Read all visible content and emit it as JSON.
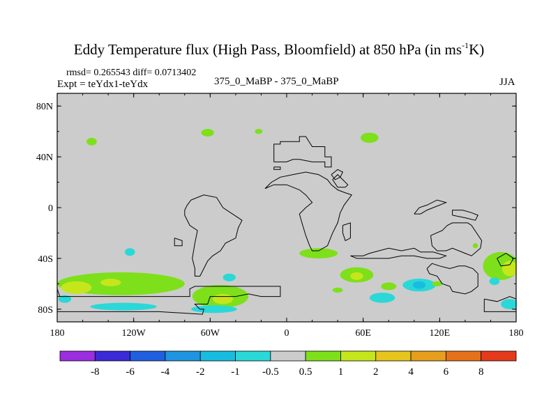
{
  "title": {
    "main": "Eddy Temperature flux (High Pass, Bloomfield) at 850 hPa (in ms",
    "superscript": "-1",
    "unit_end": "K)"
  },
  "header": {
    "stats": "rmsd= 0.265543 diff= 0.0713402",
    "expt": "Expt = teYdx1-teYdx",
    "runs": "375_0_MaBP - 375_0_MaBP",
    "season": "JJA"
  },
  "chart_data": {
    "type": "heatmap",
    "title": "Eddy Temperature flux (High Pass, Bloomfield) at 850 hPa (in ms-1K)",
    "xlabel": "",
    "ylabel": "",
    "xlim": [
      -180,
      180
    ],
    "ylim": [
      -90,
      90
    ],
    "x_ticks": [
      {
        "value": -180,
        "label": "180"
      },
      {
        "value": -120,
        "label": "120W"
      },
      {
        "value": -60,
        "label": "60W"
      },
      {
        "value": 0,
        "label": "0"
      },
      {
        "value": 60,
        "label": "60E"
      },
      {
        "value": 120,
        "label": "120E"
      },
      {
        "value": 180,
        "label": "180"
      }
    ],
    "y_ticks": [
      {
        "value": 80,
        "label": "80N"
      },
      {
        "value": 40,
        "label": "40N"
      },
      {
        "value": 0,
        "label": "0"
      },
      {
        "value": -40,
        "label": "40S"
      },
      {
        "value": -80,
        "label": "80S"
      }
    ],
    "colorbar": {
      "levels": [
        "-8",
        "-6",
        "-4",
        "-2",
        "-1",
        "-0.5",
        "0.5",
        "1",
        "2",
        "4",
        "6",
        "8"
      ],
      "colors": [
        "#9b2ee0",
        "#3a2ad8",
        "#1f5fe0",
        "#1f94e0",
        "#17bde0",
        "#2ad8d8",
        "#cccccc",
        "#7de01a",
        "#c6e61c",
        "#e6c51c",
        "#e69e1c",
        "#e6701c",
        "#e63a1c"
      ]
    },
    "background_value_color": "#cccccc",
    "regions": [
      {
        "label": "1",
        "lon": -130,
        "lat": -60,
        "rx": 50,
        "ry": 9,
        "color": "#7de01a"
      },
      {
        "label": "2",
        "lon": -165,
        "lat": -63,
        "rx": 12,
        "ry": 5,
        "color": "#c6e61c"
      },
      {
        "label": "2",
        "lon": -138,
        "lat": -59,
        "rx": 8,
        "ry": 3,
        "color": "#c6e61c"
      },
      {
        "label": "1",
        "lon": -52,
        "lat": -70,
        "rx": 22,
        "ry": 9,
        "color": "#7de01a"
      },
      {
        "label": "2",
        "lon": -50,
        "lat": -72,
        "rx": 8,
        "ry": 4,
        "color": "#c6e61c"
      },
      {
        "label": "-1",
        "lon": -128,
        "lat": -78,
        "rx": 26,
        "ry": 3,
        "color": "#2ad8d8"
      },
      {
        "label": "-1",
        "lon": -174,
        "lat": -72,
        "rx": 5,
        "ry": 3,
        "color": "#2ad8d8"
      },
      {
        "label": "-1",
        "lon": -57,
        "lat": -80,
        "rx": 18,
        "ry": 3,
        "color": "#2ad8d8"
      },
      {
        "label": "-1",
        "lon": -45,
        "lat": -55,
        "rx": 5,
        "ry": 3,
        "color": "#2ad8d8"
      },
      {
        "label": "-1",
        "lon": -123,
        "lat": -35,
        "rx": 4,
        "ry": 3,
        "color": "#2ad8d8"
      },
      {
        "label": "1",
        "lon": -153,
        "lat": 52,
        "rx": 4,
        "ry": 3,
        "color": "#7de01a"
      },
      {
        "label": "1",
        "lon": -62,
        "lat": 59,
        "rx": 5,
        "ry": 3,
        "color": "#7de01a"
      },
      {
        "label": "1",
        "lon": 65,
        "lat": 55,
        "rx": 7,
        "ry": 4,
        "color": "#7de01a"
      },
      {
        "label": "1",
        "lon": -22,
        "lat": 60,
        "rx": 3,
        "ry": 2,
        "color": "#7de01a"
      },
      {
        "label": "1",
        "lon": 25,
        "lat": -36,
        "rx": 15,
        "ry": 4,
        "color": "#7de01a"
      },
      {
        "label": "1",
        "lon": 55,
        "lat": -53,
        "rx": 13,
        "ry": 6,
        "color": "#7de01a"
      },
      {
        "label": "2",
        "lon": 55,
        "lat": -54,
        "rx": 5,
        "ry": 3,
        "color": "#c6e61c"
      },
      {
        "label": "1",
        "lon": 80,
        "lat": -62,
        "rx": 6,
        "ry": 3,
        "color": "#7de01a"
      },
      {
        "label": "-1",
        "lon": 104,
        "lat": -61,
        "rx": 13,
        "ry": 5,
        "color": "#2ad8d8"
      },
      {
        "label": "-2",
        "lon": 104,
        "lat": -61,
        "rx": 5,
        "ry": 3,
        "color": "#17bde0"
      },
      {
        "label": "-1",
        "lon": 75,
        "lat": -71,
        "rx": 10,
        "ry": 4,
        "color": "#2ad8d8"
      },
      {
        "label": "1",
        "lon": 168,
        "lat": -46,
        "rx": 14,
        "ry": 11,
        "color": "#7de01a"
      },
      {
        "label": "2",
        "lon": 175,
        "lat": -48,
        "rx": 6,
        "ry": 6,
        "color": "#c6e61c"
      },
      {
        "label": "-1",
        "lon": 175,
        "lat": -76,
        "rx": 7,
        "ry": 4,
        "color": "#2ad8d8"
      },
      {
        "label": "-1",
        "lon": 163,
        "lat": -58,
        "rx": 4,
        "ry": 3,
        "color": "#2ad8d8"
      },
      {
        "label": "1",
        "lon": 148,
        "lat": -30,
        "rx": 2,
        "ry": 2,
        "color": "#7de01a"
      },
      {
        "label": "1",
        "lon": 118,
        "lat": -60,
        "rx": 4,
        "ry": 2,
        "color": "#7de01a"
      },
      {
        "label": "1",
        "lon": 40,
        "lat": -65,
        "rx": 4,
        "ry": 2,
        "color": "#7de01a"
      }
    ],
    "land_outlines": [
      [
        [
          -180,
          -70
        ],
        [
          -150,
          -70
        ],
        [
          -130,
          -70
        ],
        [
          -118,
          -70
        ],
        [
          -100,
          -70
        ],
        [
          -88,
          -70
        ],
        [
          -76,
          -70
        ],
        [
          -76,
          -64
        ],
        [
          -72,
          -62
        ],
        [
          -40,
          -62
        ],
        [
          -30,
          -62
        ],
        [
          -5,
          -62
        ],
        [
          -5,
          -70
        ],
        [
          -20,
          -70
        ],
        [
          -30,
          -68
        ],
        [
          -40,
          -70
        ],
        [
          -60,
          -70
        ],
        [
          -62,
          -76
        ],
        [
          -72,
          -76
        ],
        [
          -68,
          -80
        ],
        [
          -65,
          -80
        ],
        [
          -66,
          -84
        ],
        [
          -100,
          -82
        ],
        [
          -140,
          -82
        ],
        [
          -180,
          -82
        ]
      ],
      [
        [
          -180,
          -64
        ],
        [
          -178,
          -70
        ]
      ],
      [
        [
          -10,
          36
        ],
        [
          -10,
          50
        ],
        [
          -5,
          50
        ],
        [
          -5,
          52
        ],
        [
          10,
          52
        ],
        [
          10,
          56
        ],
        [
          15,
          56
        ],
        [
          20,
          48
        ],
        [
          30,
          48
        ],
        [
          30,
          40
        ],
        [
          35,
          40
        ],
        [
          35,
          32
        ],
        [
          30,
          32
        ],
        [
          30,
          36
        ],
        [
          20,
          36
        ],
        [
          10,
          38
        ],
        [
          5,
          38
        ],
        [
          0,
          36
        ],
        [
          -10,
          36
        ]
      ],
      [
        [
          -10,
          32
        ],
        [
          -5,
          32
        ],
        [
          -5,
          30
        ],
        [
          -10,
          30
        ],
        [
          -10,
          32
        ]
      ],
      [
        [
          -75,
          6
        ],
        [
          -65,
          10
        ],
        [
          -55,
          8
        ],
        [
          -50,
          0
        ],
        [
          -38,
          -8
        ],
        [
          -35,
          -10
        ],
        [
          -38,
          -16
        ],
        [
          -40,
          -24
        ],
        [
          -48,
          -28
        ],
        [
          -52,
          -34
        ],
        [
          -58,
          -38
        ],
        [
          -62,
          -42
        ],
        [
          -65,
          -48
        ],
        [
          -68,
          -54
        ],
        [
          -72,
          -54
        ],
        [
          -72,
          -48
        ],
        [
          -74,
          -40
        ],
        [
          -72,
          -28
        ],
        [
          -70,
          -18
        ],
        [
          -76,
          -14
        ],
        [
          -80,
          -6
        ],
        [
          -80,
          -2
        ],
        [
          -78,
          2
        ],
        [
          -75,
          6
        ]
      ],
      [
        [
          -88,
          -24
        ],
        [
          -82,
          -26
        ],
        [
          -82,
          -30
        ],
        [
          -88,
          -30
        ],
        [
          -88,
          -24
        ]
      ],
      [
        [
          -17,
          15
        ],
        [
          -10,
          18
        ],
        [
          0,
          18
        ],
        [
          10,
          14
        ],
        [
          15,
          10
        ],
        [
          20,
          4
        ],
        [
          15,
          0
        ],
        [
          10,
          -5
        ],
        [
          12,
          -12
        ],
        [
          15,
          -22
        ],
        [
          18,
          -30
        ],
        [
          20,
          -34
        ],
        [
          25,
          -34
        ],
        [
          32,
          -30
        ],
        [
          36,
          -20
        ],
        [
          40,
          -12
        ],
        [
          42,
          -4
        ],
        [
          45,
          2
        ],
        [
          51,
          10
        ],
        [
          45,
          12
        ],
        [
          40,
          14
        ],
        [
          35,
          18
        ],
        [
          32,
          22
        ],
        [
          25,
          26
        ],
        [
          15,
          28
        ],
        [
          5,
          26
        ],
        [
          -5,
          24
        ],
        [
          -12,
          20
        ],
        [
          -17,
          15
        ]
      ],
      [
        [
          44,
          -14
        ],
        [
          50,
          -12
        ],
        [
          50,
          -24
        ],
        [
          46,
          -26
        ],
        [
          44,
          -20
        ],
        [
          44,
          -14
        ]
      ],
      [
        [
          35,
          26
        ],
        [
          40,
          30
        ],
        [
          44,
          28
        ],
        [
          42,
          24
        ],
        [
          38,
          22
        ],
        [
          35,
          26
        ]
      ],
      [
        [
          100,
          -5
        ],
        [
          105,
          -5
        ],
        [
          110,
          -2
        ],
        [
          115,
          0
        ],
        [
          120,
          2
        ],
        [
          125,
          4
        ],
        [
          118,
          6
        ],
        [
          110,
          2
        ],
        [
          104,
          0
        ],
        [
          100,
          -5
        ]
      ],
      [
        [
          50,
          -38
        ],
        [
          60,
          -38
        ],
        [
          65,
          -36
        ],
        [
          80,
          -32
        ],
        [
          90,
          -34
        ],
        [
          100,
          -32
        ],
        [
          105,
          -35
        ],
        [
          115,
          -35
        ],
        [
          125,
          -38
        ],
        [
          120,
          -40
        ],
        [
          110,
          -40
        ],
        [
          100,
          -38
        ],
        [
          90,
          -38
        ],
        [
          80,
          -40
        ],
        [
          70,
          -40
        ],
        [
          60,
          -40
        ],
        [
          55,
          -40
        ],
        [
          50,
          -38
        ]
      ],
      [
        [
          113,
          -22
        ],
        [
          114,
          -30
        ],
        [
          118,
          -34
        ],
        [
          125,
          -34
        ],
        [
          130,
          -32
        ],
        [
          140,
          -36
        ],
        [
          145,
          -38
        ],
        [
          152,
          -32
        ],
        [
          153,
          -26
        ],
        [
          145,
          -14
        ],
        [
          142,
          -12
        ],
        [
          136,
          -12
        ],
        [
          130,
          -12
        ],
        [
          126,
          -14
        ],
        [
          122,
          -18
        ],
        [
          113,
          -22
        ]
      ],
      [
        [
          130,
          -6
        ],
        [
          140,
          -8
        ],
        [
          148,
          -10
        ],
        [
          150,
          -6
        ],
        [
          145,
          -4
        ],
        [
          138,
          -2
        ],
        [
          130,
          -2
        ],
        [
          130,
          -6
        ]
      ],
      [
        [
          110,
          -48
        ],
        [
          112,
          -52
        ],
        [
          118,
          -54
        ],
        [
          122,
          -60
        ],
        [
          128,
          -62
        ],
        [
          130,
          -66
        ],
        [
          140,
          -68
        ],
        [
          145,
          -66
        ],
        [
          150,
          -62
        ],
        [
          150,
          -52
        ],
        [
          146,
          -48
        ],
        [
          140,
          -46
        ],
        [
          135,
          -46
        ],
        [
          128,
          -48
        ],
        [
          120,
          -46
        ],
        [
          114,
          -44
        ],
        [
          110,
          -48
        ]
      ],
      [
        [
          165,
          -40
        ],
        [
          172,
          -36
        ],
        [
          178,
          -40
        ],
        [
          175,
          -45
        ],
        [
          168,
          -46
        ],
        [
          165,
          -40
        ]
      ],
      [
        [
          155,
          -72
        ],
        [
          165,
          -74
        ],
        [
          175,
          -70
        ],
        [
          180,
          -72
        ],
        [
          180,
          -82
        ],
        [
          155,
          -82
        ],
        [
          155,
          -72
        ]
      ],
      [
        [
          36,
          22
        ],
        [
          40,
          26
        ],
        [
          44,
          22
        ],
        [
          48,
          18
        ],
        [
          46,
          16
        ],
        [
          40,
          16
        ],
        [
          36,
          22
        ]
      ]
    ]
  }
}
